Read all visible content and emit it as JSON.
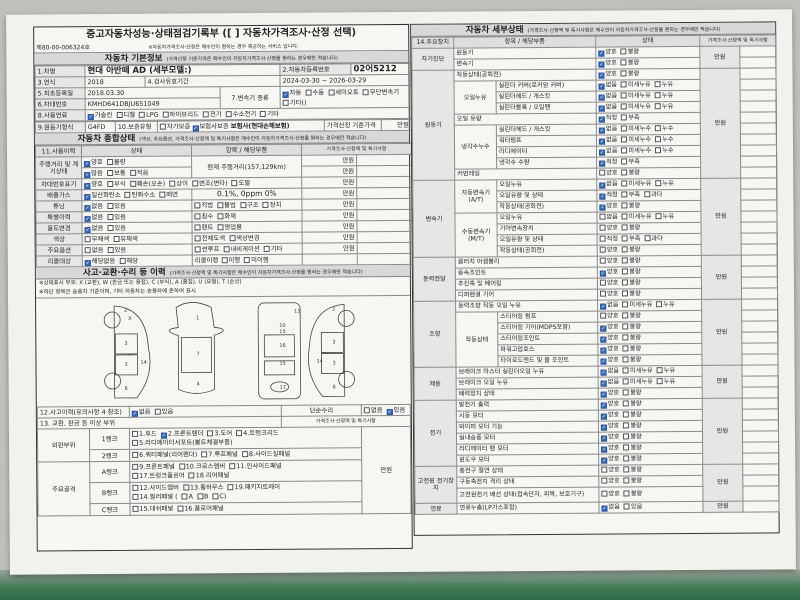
{
  "left": {
    "title": "중고자동차성능·상태점검기록부 ([ ] 자동차가격조사·산정 선택)",
    "doc_no": "제80-00-006324호",
    "doc_notice": "※자동차가격조사·산정은 매수인이 원하는 경우 제공하는 서비스 입니다.",
    "basic": {
      "title": "자동차 기본정보",
      "note": "(가격산정 기준가격은 매수인이 자동차가격조사·산정을 원하는 경우에만 적습니다)",
      "name_label": "1.차명",
      "name": "현대 아반떼 AD (세부모델:)",
      "reg_label": "2.자동차등록번호",
      "reg": "02어5212",
      "year_label": "3.연식",
      "year": "2018",
      "insp_label": "4.검사유효기간",
      "insp": "2024-03-30 ~ 2026-03-29",
      "first_label": "5.최초등록일",
      "first": "2018.03.30",
      "trans_label": "7.변속기 종류",
      "trans": {
        "opts": [
          "자동",
          "수동",
          "세미오토",
          "무단변속기",
          "기타()"
        ],
        "chk": [
          0
        ]
      },
      "vin_label": "6.차대번호",
      "vin": "KMHD641DBJU651049",
      "fuel_label": "8.사용연료",
      "fuel": {
        "opts": [
          "가솔린",
          "디젤",
          "LPG",
          "하이브리드",
          "전기",
          "수소전기",
          "기타"
        ],
        "chk": [
          0
        ]
      },
      "engine_label": "9.원동기형식",
      "engine": "G4FD",
      "warranty_label": "10.보증유형",
      "warranty": {
        "opts": [
          "자가보증",
          "보험사보증"
        ],
        "chk": [
          1
        ]
      },
      "insurer": "보험사(현대손해보험)",
      "base_price_label": "가격산정 기준가격",
      "price_unit": "만원"
    },
    "overall": {
      "title": "자동차 종합상태",
      "note": "(색상, 주요옵션, 가격조사·산정액 및 특기사항은 매수인이 자동차가격조사·산정을 원하는 경우에만 적습니다)",
      "headers": [
        "11.사용이력",
        "상태",
        "항목 / 해당부품",
        "가격조사·산정액 및 특기사항"
      ],
      "rows": [
        {
          "label": "주행거리 및 계기상태",
          "opts": [
            "양호",
            "불량"
          ],
          "chk": [
            0
          ],
          "detail": "현재 주행거리(157,129km)",
          "price": "만원"
        },
        {
          "opts": [
            "많음",
            "보통",
            "적음"
          ],
          "chk": [
            0
          ],
          "price": "만원"
        },
        {
          "label": "차대번호표기",
          "opts": [
            "양호",
            "부식",
            "훼손(오손)",
            "상이",
            "변조(변타)",
            "도말"
          ],
          "chk": [
            0
          ],
          "wide": true,
          "price": "만원"
        },
        {
          "label": "배출가스",
          "opts": [
            "일산화탄소",
            "탄화수소",
            "매연"
          ],
          "chk": [
            0
          ],
          "detail": "0.1%,      0ppm      0%",
          "price": "만원"
        },
        {
          "label": "튜닝",
          "opts": [
            "없음",
            "있음"
          ],
          "chk": [
            0
          ],
          "dopts": [
            "적법",
            "불법",
            "구조",
            "장치"
          ],
          "price": "만원"
        },
        {
          "label": "특별이력",
          "opts": [
            "없음",
            "있음"
          ],
          "chk": [
            0
          ],
          "dopts": [
            "침수",
            "화재"
          ],
          "price": "만원"
        },
        {
          "label": "용도변경",
          "opts": [
            "없음",
            "있음"
          ],
          "chk": [
            0
          ],
          "dopts": [
            "렌트",
            "영업용"
          ],
          "price": "만원"
        },
        {
          "label": "색상",
          "opts": [
            "무채색",
            "유채색"
          ],
          "chk": [],
          "dopts": [
            "전체도색",
            "색상변경"
          ],
          "price": "만원"
        },
        {
          "label": "주요옵션",
          "opts": [
            "없음",
            "있음"
          ],
          "chk": [],
          "dopts": [
            "썬루프",
            "내비게이션",
            "기타"
          ],
          "price": "만원"
        },
        {
          "label": "리콜대상",
          "opts": [
            "해당없음",
            "해당"
          ],
          "chk": [
            0
          ],
          "dlabel": "리콜이행",
          "dopts": [
            "이행",
            "미이행"
          ],
          "price": ""
        }
      ]
    },
    "accident": {
      "title": "사고·교환·수리 등 이력",
      "note": "(가격조사·산정액 및 특기사항은 매수인이 자동차가격조사·산정을 원하는 경우에만 적습니다)",
      "legend1": "※상태표시 부호: X (교환), W (판금 또는 용접), C (부식), A (흠집), U (요철), T (손상)",
      "legend2": "※하단 항목은 승용차 기준이며, 기타 자동차는 승용자에 준하여 표시",
      "diagram_labels": [
        "2",
        "X",
        "3",
        "3",
        "6",
        "14",
        "1",
        "7",
        "4",
        "10",
        "15",
        "16",
        "15",
        "17",
        "11",
        "2",
        "3",
        "3",
        "6",
        "14"
      ],
      "history_label": "12.사고이력(유의사항 4 참조)",
      "history": {
        "opts": [
          "없음",
          "있음"
        ],
        "chk": [
          0
        ]
      },
      "repair_label": "단순수리",
      "repair": {
        "opts": [
          "없음",
          "있음"
        ],
        "chk": [
          1
        ]
      },
      "parts_label": "13. 교환, 판금 등 이상 부위",
      "price_note": "가격조사·산정액 및 특기사항",
      "price_unit": "만원",
      "outer_label": "외판부위",
      "frame_label": "주요골격",
      "ranks": [
        {
          "name": "1랭크",
          "lines": [
            {
              "opts": [
                "1.후드",
                "2.프론트펜더",
                "3.도어",
                "4.트렁크리드"
              ],
              "chk": [
                1
              ]
            },
            {
              "opts": [
                "5.라디에이터서포트(볼트체결부품)"
              ],
              "chk": []
            }
          ]
        },
        {
          "name": "2랭크",
          "lines": [
            {
              "opts": [
                "6.쿼터패널(리어펜더)",
                "7.루프패널",
                "8.사이드실패널"
              ],
              "chk": []
            }
          ]
        },
        {
          "name": "A랭크",
          "lines": [
            {
              "opts": [
                "9.프론트패널",
                "10.크로스멤버",
                "11.인사이드패널"
              ],
              "chk": []
            },
            {
              "opts": [
                "17.트렁크플로어",
                "18.리어패널"
              ],
              "chk": []
            }
          ]
        },
        {
          "name": "B랭크",
          "lines": [
            {
              "opts": [
                "12.사이드멤버",
                "13.휠하우스",
                "19.패키지트레이"
              ],
              "chk": []
            },
            {
              "opts": [
                "14.필러패널 (",
                "A",
                "B",
                "C)"
              ],
              "chk": []
            }
          ]
        },
        {
          "name": "C랭크",
          "lines": [
            {
              "opts": [
                "15.대쉬패널",
                "16.플로어패널"
              ],
              "chk": []
            }
          ]
        }
      ]
    }
  },
  "right": {
    "title": "자동차 세부상태",
    "note": "(가격조사·산정액 및 특기사항은 매수인이 자동차가격조사·산정을 원하는 경우에만 적습니다)",
    "headers": [
      "14.주요장치",
      "항목 / 해당부품",
      "상태",
      "가격조사·산정액 및 특기사항"
    ],
    "groups": [
      {
        "name": "자기진단",
        "price": "만원",
        "subs": [
          {
            "name": "",
            "items": [
              {
                "name": "원동기",
                "opts": [
                  "양호",
                  "불량"
                ],
                "chk": [
                  0
                ]
              },
              {
                "name": "변속기",
                "opts": [
                  "양호",
                  "불량"
                ],
                "chk": [
                  0
                ]
              }
            ]
          }
        ]
      },
      {
        "name": "원동기",
        "price": "만원",
        "subs": [
          {
            "name": "",
            "items": [
              {
                "name": "작동상태(공회전)",
                "opts": [
                  "양호",
                  "불량"
                ],
                "chk": [
                  0
                ]
              }
            ]
          },
          {
            "name": "오일누유",
            "items": [
              {
                "name": "실린더 커버(로커암 커버)",
                "opts": [
                  "없음",
                  "미세누유",
                  "누유"
                ],
                "chk": [
                  0
                ]
              },
              {
                "name": "실린더헤드 / 개스킷",
                "opts": [
                  "없음",
                  "미세누유",
                  "누유"
                ],
                "chk": [
                  0
                ]
              },
              {
                "name": "실린더블록 / 오일팬",
                "opts": [
                  "없음",
                  "미세누유",
                  "누유"
                ],
                "chk": [
                  0
                ]
              }
            ]
          },
          {
            "name": "",
            "items": [
              {
                "name": "오일 유량",
                "opts": [
                  "적정",
                  "부족"
                ],
                "chk": [
                  0
                ]
              }
            ]
          },
          {
            "name": "냉각수누수",
            "items": [
              {
                "name": "실린더헤드 / 개스킷",
                "opts": [
                  "없음",
                  "미세누수",
                  "누수"
                ],
                "chk": [
                  0
                ]
              },
              {
                "name": "워터펌프",
                "opts": [
                  "없음",
                  "미세누수",
                  "누수"
                ],
                "chk": [
                  0
                ]
              },
              {
                "name": "라디에이터",
                "opts": [
                  "없음",
                  "미세누수",
                  "누수"
                ],
                "chk": [
                  0
                ]
              },
              {
                "name": "냉각수 수량",
                "opts": [
                  "적정",
                  "부족"
                ],
                "chk": [
                  0
                ]
              }
            ]
          },
          {
            "name": "",
            "items": [
              {
                "name": "커먼레일",
                "opts": [
                  "양호",
                  "불량"
                ],
                "chk": []
              }
            ]
          }
        ]
      },
      {
        "name": "변속기",
        "price": "만원",
        "subs": [
          {
            "name": "자동변속기 (A/T)",
            "items": [
              {
                "name": "오일누유",
                "opts": [
                  "없음",
                  "미세누유",
                  "누유"
                ],
                "chk": [
                  0
                ]
              },
              {
                "name": "오일유량 및 상태",
                "opts": [
                  "적정",
                  "부족",
                  "과다"
                ],
                "chk": [
                  0
                ]
              },
              {
                "name": "작동상태(공회전)",
                "opts": [
                  "양호",
                  "불량"
                ],
                "chk": [
                  0
                ]
              }
            ]
          },
          {
            "name": "수동변속기 (M/T)",
            "items": [
              {
                "name": "오일누유",
                "opts": [
                  "없음",
                  "미세누유",
                  "누유"
                ],
                "chk": []
              },
              {
                "name": "기어변속장치",
                "opts": [
                  "양호",
                  "불량"
                ],
                "chk": []
              },
              {
                "name": "오일유량 및 상태",
                "opts": [
                  "적정",
                  "부족",
                  "과다"
                ],
                "chk": []
              },
              {
                "name": "작동상태(공회전)",
                "opts": [
                  "양호",
                  "불량"
                ],
                "chk": []
              }
            ]
          }
        ]
      },
      {
        "name": "동력전달",
        "price": "만원",
        "subs": [
          {
            "name": "",
            "items": [
              {
                "name": "클러치 어셈블리",
                "opts": [
                  "양호",
                  "불량"
                ],
                "chk": []
              },
              {
                "name": "등속조인트",
                "opts": [
                  "양호",
                  "불량"
                ],
                "chk": [
                  0
                ]
              },
              {
                "name": "추진축 및 베어링",
                "opts": [
                  "양호",
                  "불량"
                ],
                "chk": []
              },
              {
                "name": "디퍼렌셜 기어",
                "opts": [
                  "양호",
                  "불량"
                ],
                "chk": []
              }
            ]
          }
        ]
      },
      {
        "name": "조향",
        "price": "만원",
        "subs": [
          {
            "name": "",
            "items": [
              {
                "name": "동력조향 작동 오일 누유",
                "opts": [
                  "없음",
                  "미세누유",
                  "누유"
                ],
                "chk": [
                  0
                ]
              }
            ]
          },
          {
            "name": "작동상태",
            "items": [
              {
                "name": "스티어링 펌프",
                "opts": [
                  "양호",
                  "불량"
                ],
                "chk": []
              },
              {
                "name": "스티어링 기어(MDPS포함)",
                "opts": [
                  "양호",
                  "불량"
                ],
                "chk": [
                  0
                ]
              },
              {
                "name": "스티어링조인트",
                "opts": [
                  "양호",
                  "불량"
                ],
                "chk": [
                  0
                ]
              },
              {
                "name": "파워고압호스",
                "opts": [
                  "양호",
                  "불량"
                ],
                "chk": [
                  0
                ]
              },
              {
                "name": "타이로드엔드 및 볼 조인트",
                "opts": [
                  "양호",
                  "불량"
                ],
                "chk": [
                  0
                ]
              }
            ]
          }
        ]
      },
      {
        "name": "제동",
        "price": "만원",
        "subs": [
          {
            "name": "",
            "items": [
              {
                "name": "브레이크 마스터 실린더오일 누유",
                "opts": [
                  "없음",
                  "미세누유",
                  "누유"
                ],
                "chk": [
                  0
                ]
              },
              {
                "name": "브레이크 오일 누유",
                "opts": [
                  "없음",
                  "미세누유",
                  "누유"
                ],
                "chk": [
                  0
                ]
              },
              {
                "name": "배력장치 상태",
                "opts": [
                  "양호",
                  "불량"
                ],
                "chk": [
                  0
                ]
              }
            ]
          }
        ]
      },
      {
        "name": "전기",
        "price": "만원",
        "subs": [
          {
            "name": "",
            "items": [
              {
                "name": "발전기 출력",
                "opts": [
                  "양호",
                  "불량"
                ],
                "chk": [
                  0
                ]
              },
              {
                "name": "시동 모터",
                "opts": [
                  "양호",
                  "불량"
                ],
                "chk": [
                  0
                ]
              },
              {
                "name": "와이퍼 모터 기능",
                "opts": [
                  "양호",
                  "불량"
                ],
                "chk": [
                  0
                ]
              },
              {
                "name": "실내송풍 모터",
                "opts": [
                  "양호",
                  "불량"
                ],
                "chk": [
                  0
                ]
              },
              {
                "name": "라디에이터 팬 모터",
                "opts": [
                  "양호",
                  "불량"
                ],
                "chk": [
                  0
                ]
              },
              {
                "name": "윈도우 모터",
                "opts": [
                  "양호",
                  "불량"
                ],
                "chk": [
                  0
                ]
              }
            ]
          }
        ]
      },
      {
        "name": "고전원 전기장치",
        "price": "만원",
        "subs": [
          {
            "name": "",
            "items": [
              {
                "name": "충전구 절연 상태",
                "opts": [
                  "양호",
                  "불량"
                ],
                "chk": []
              },
              {
                "name": "구동축전지 격리 상태",
                "opts": [
                  "양호",
                  "불량"
                ],
                "chk": []
              },
              {
                "name": "고전원전기 배선 상태(접속단자, 피복, 보호기구)",
                "opts": [
                  "양호",
                  "불량"
                ],
                "chk": []
              }
            ]
          }
        ]
      },
      {
        "name": "연료",
        "price": "만원",
        "subs": [
          {
            "name": "",
            "items": [
              {
                "name": "연료누출(LP가스포함)",
                "opts": [
                  "없음",
                  "있음"
                ],
                "chk": [
                  0
                ]
              }
            ]
          }
        ]
      }
    ]
  },
  "colors": {
    "checkbox_checked": "#3a6dc0",
    "paper": "#f1f1ee",
    "table_surface": "#2f6a48"
  }
}
